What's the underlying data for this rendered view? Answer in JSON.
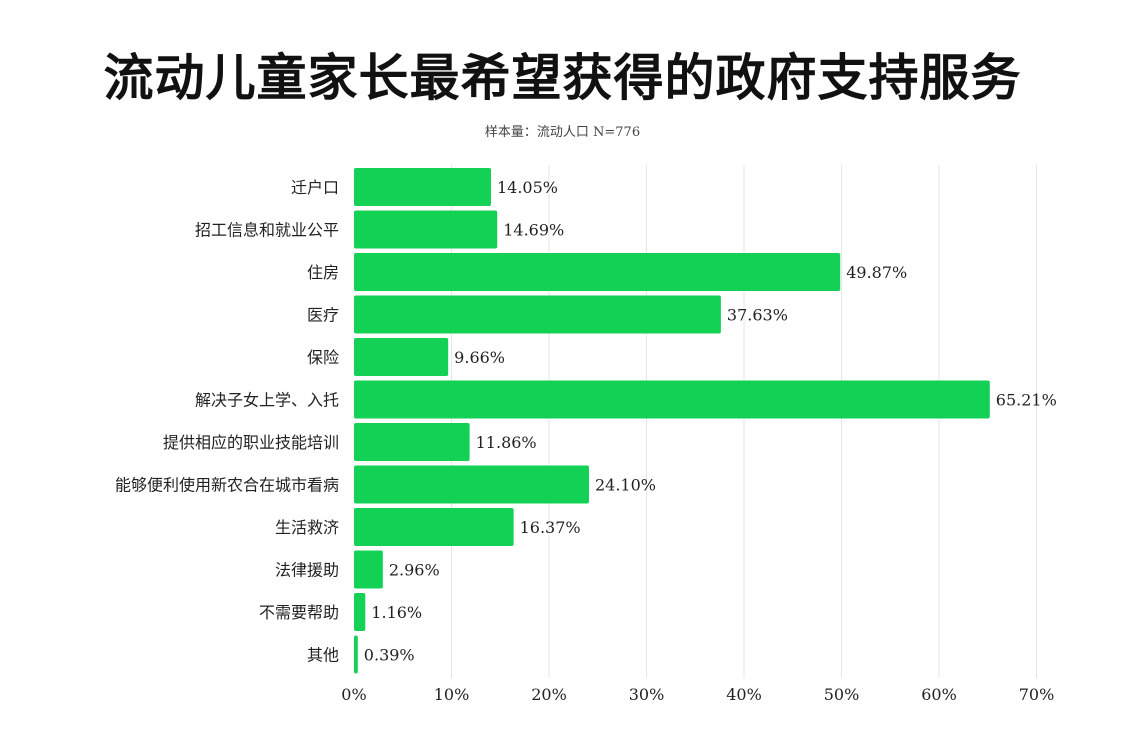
{
  "chart_data": {
    "type": "bar",
    "orientation": "horizontal",
    "title": "流动儿童家长最希望获得的政府支持服务",
    "subtitle": "样本量：流动人口 N=776",
    "categories": [
      "迁户口",
      "招工信息和就业公平",
      "住房",
      "医疗",
      "保险",
      "解决子女上学、入托",
      "提供相应的职业技能培训",
      "能够便利使用新农合在城市看病",
      "生活救济",
      "法律援助",
      "不需要帮助",
      "其他"
    ],
    "values": [
      14.05,
      14.69,
      49.87,
      37.63,
      9.66,
      65.21,
      11.86,
      24.1,
      16.37,
      2.96,
      1.16,
      0.39
    ],
    "value_labels": [
      "14.05%",
      "14.69%",
      "49.87%",
      "37.63%",
      "9.66%",
      "65.21%",
      "11.86%",
      "24.10%",
      "16.37%",
      "2.96%",
      "1.16%",
      "0.39%"
    ],
    "xlim": [
      0,
      70
    ],
    "xticks": [
      0,
      10,
      20,
      30,
      40,
      50,
      60,
      70
    ],
    "xtick_labels": [
      "0%",
      "10%",
      "20%",
      "30%",
      "40%",
      "50%",
      "60%",
      "70%"
    ],
    "grid": "vertical",
    "bar_color": "#12d155",
    "legend": "none"
  }
}
